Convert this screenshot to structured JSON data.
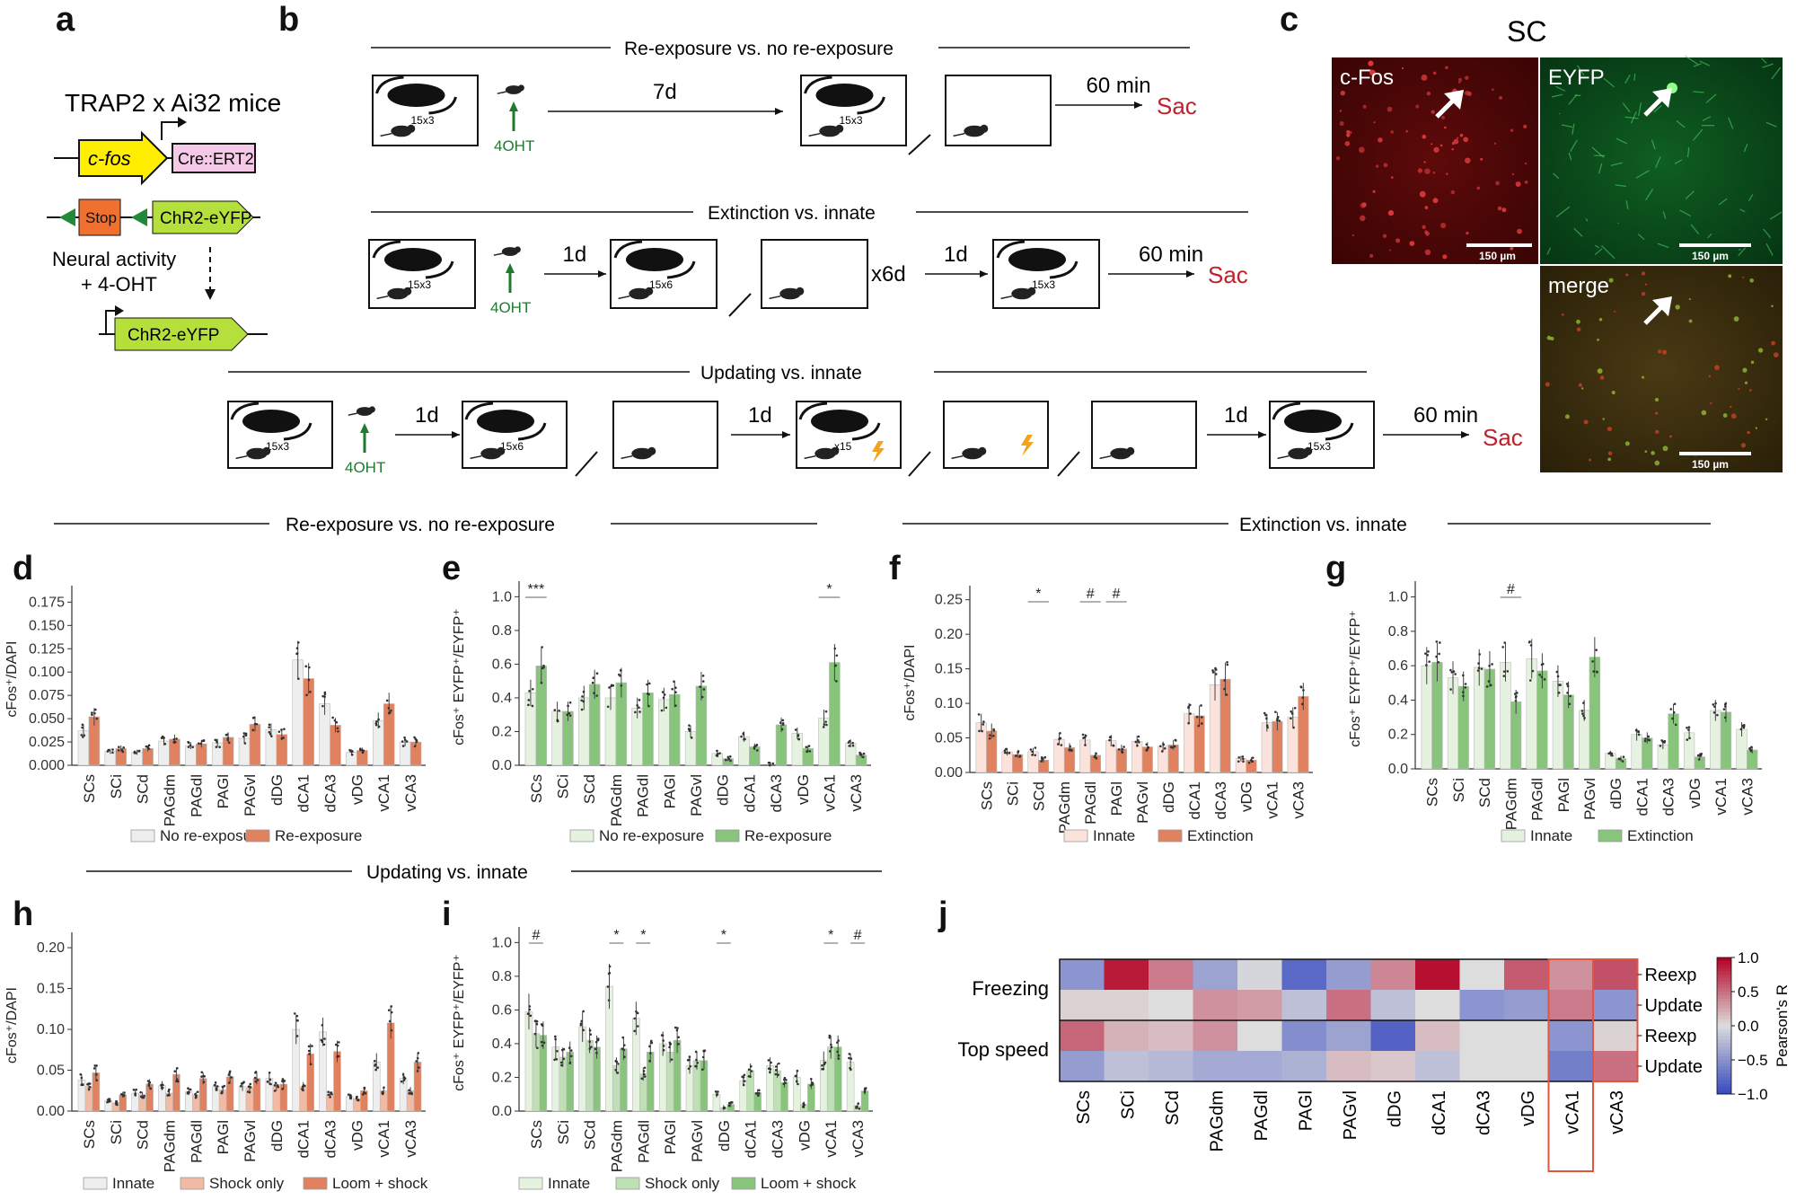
{
  "panel_letters": [
    "a",
    "b",
    "c",
    "d",
    "e",
    "f",
    "g",
    "h",
    "i",
    "j"
  ],
  "colors": {
    "innate": "#eeeeee",
    "innate_light_red": "#fbe3db",
    "innate_light_green": "#e6f2e0",
    "orange": "#e0825f",
    "light_orange": "#f2b9a3",
    "green": "#88c47c",
    "light_green": "#bfe0b5",
    "dark_red_text": "#c0202a",
    "dark_green_text": "#1f7a2e",
    "fluor_red": "#7a1010",
    "fluor_green": "#0c5a1e"
  },
  "panel_a": {
    "title": "TRAP2 x Ai32 mice",
    "cfos": "c-fos",
    "cre": "Cre::ERT2",
    "stop": "Stop",
    "chr2_1": "ChR2-eYFP",
    "activity_line1": "Neural activity",
    "activity_line2": "+ 4-OHT",
    "chr2_2": "ChR2-eYFP"
  },
  "panel_b": {
    "header1": "Re-exposure vs. no re-exposure",
    "header2": "Extinction vs. innate",
    "header3": "Updating vs. innate",
    "labels": {
      "r1_box1": "15x3",
      "r1_drug": "4OHT",
      "r1_days": "7d",
      "r1_box2": "15x3",
      "r1_time": "60 min",
      "r1_sac": "Sac",
      "r2_box1": "15x3",
      "r2_drug": "4OHT",
      "r2_d1": "1d",
      "r2_box2": "15x6",
      "r2_rep": "x6d",
      "r2_d2": "1d",
      "r2_box3": "15x3",
      "r2_time": "60 min",
      "r2_sac": "Sac",
      "r3_box1": "15x3",
      "r3_drug": "4OHT",
      "r3_d1": "1d",
      "r3_box2": "15x6",
      "r3_d2": "1d",
      "r3_box3": "x15",
      "r3_d3": "1d",
      "r3_box4": "15x3",
      "r3_time": "60 min",
      "r3_sac": "Sac"
    }
  },
  "panel_c": {
    "title": "SC",
    "cfos_label": "c-Fos",
    "eyfp_label": "EYFP",
    "merge_label": "merge",
    "scale1": "150 µm",
    "scale2": "150 µm",
    "scale3": "150 µm"
  },
  "section_headers": {
    "top_left": "Re-exposure vs. no re-exposure",
    "top_right": "Extinction vs. innate",
    "bottom_left": "Updating vs. innate"
  },
  "chart_data": [
    {
      "id": "d",
      "type": "bar",
      "ylabel": "cFos⁺/DAPI",
      "ylim": [
        0,
        0.185
      ],
      "yticks": [
        "0.000",
        "0.025",
        "0.050",
        "0.075",
        "0.100",
        "0.125",
        "0.150",
        "0.175"
      ],
      "ytick_values": [
        0,
        0.025,
        0.05,
        0.075,
        0.1,
        0.125,
        0.15,
        0.175
      ],
      "categories": [
        "SCs",
        "SCi",
        "SCd",
        "PAGdm",
        "PAGdl",
        "PAGl",
        "PAGvl",
        "dDG",
        "dCA1",
        "dCA3",
        "vDG",
        "vCA1",
        "vCA3"
      ],
      "series": [
        {
          "name": "No re-exposure",
          "color": "#eeeeee",
          "values": [
            0.037,
            0.015,
            0.014,
            0.026,
            0.021,
            0.024,
            0.029,
            0.038,
            0.113,
            0.066,
            0.014,
            0.048,
            0.025
          ]
        },
        {
          "name": "Re-exposure",
          "color": "#e0825f",
          "values": [
            0.052,
            0.018,
            0.018,
            0.028,
            0.023,
            0.03,
            0.044,
            0.033,
            0.093,
            0.043,
            0.016,
            0.066,
            0.025
          ]
        }
      ],
      "significance": []
    },
    {
      "id": "e",
      "type": "bar",
      "ylabel": "cFos⁺ EYFP⁺/EYFP⁺",
      "ylim": [
        0,
        1.05
      ],
      "yticks": [
        "0.0",
        "0.2",
        "0.4",
        "0.6",
        "0.8",
        "1.0"
      ],
      "ytick_values": [
        0,
        0.2,
        0.4,
        0.6,
        0.8,
        1.0
      ],
      "categories": [
        "SCs",
        "SCi",
        "SCd",
        "PAGdm",
        "PAGdl",
        "PAGl",
        "PAGvl",
        "dDG",
        "dCA1",
        "dCA3",
        "vDG",
        "vCA1",
        "vCA3"
      ],
      "series": [
        {
          "name": "No re-exposure",
          "color": "#e6f2e0",
          "values": [
            0.43,
            0.32,
            0.4,
            0.4,
            0.34,
            0.39,
            0.2,
            0.07,
            0.17,
            0.0,
            0.19,
            0.28,
            0.13
          ]
        },
        {
          "name": "Re-exposure",
          "color": "#88c47c",
          "values": [
            0.59,
            0.32,
            0.48,
            0.49,
            0.43,
            0.42,
            0.47,
            0.04,
            0.11,
            0.24,
            0.1,
            0.61,
            0.06
          ]
        }
      ],
      "significance": [
        {
          "index": 0,
          "label": "***"
        },
        {
          "index": 11,
          "label": "*"
        }
      ]
    },
    {
      "id": "f",
      "type": "bar",
      "ylabel": "cFos⁺/DAPI",
      "ylim": [
        0,
        0.26
      ],
      "yticks": [
        "0.00",
        "0.05",
        "0.10",
        "0.15",
        "0.20",
        "0.25"
      ],
      "ytick_values": [
        0,
        0.05,
        0.1,
        0.15,
        0.2,
        0.25
      ],
      "categories": [
        "SCs",
        "SCi",
        "SCd",
        "PAGdm",
        "PAGdl",
        "PAGl",
        "PAGvl",
        "dDG",
        "dCA1",
        "dCA3",
        "vDG",
        "vCA1",
        "vCA3"
      ],
      "series": [
        {
          "name": "Innate",
          "color": "#fbe3db",
          "values": [
            0.072,
            0.03,
            0.03,
            0.048,
            0.047,
            0.046,
            0.045,
            0.038,
            0.085,
            0.127,
            0.02,
            0.072,
            0.08
          ]
        },
        {
          "name": "Extinction",
          "color": "#e0825f",
          "values": [
            0.06,
            0.026,
            0.018,
            0.036,
            0.025,
            0.034,
            0.037,
            0.04,
            0.082,
            0.135,
            0.018,
            0.074,
            0.11
          ]
        }
      ],
      "significance": [
        {
          "index": 2,
          "label": "*"
        },
        {
          "index": 4,
          "label": "#"
        },
        {
          "index": 5,
          "label": "#"
        }
      ]
    },
    {
      "id": "g",
      "type": "bar",
      "ylabel": "cFos⁺ EYFP⁺/EYFP⁺",
      "ylim": [
        0,
        1.05
      ],
      "yticks": [
        "0.0",
        "0.2",
        "0.4",
        "0.6",
        "0.8",
        "1.0"
      ],
      "ytick_values": [
        0,
        0.2,
        0.4,
        0.6,
        0.8,
        1.0
      ],
      "categories": [
        "SCs",
        "SCi",
        "SCd",
        "PAGdm",
        "PAGdl",
        "PAGl",
        "PAGvl",
        "dDG",
        "dCA1",
        "dCA3",
        "vDG",
        "vCA1",
        "vCA3"
      ],
      "series": [
        {
          "name": "Innate",
          "color": "#e6f2e0",
          "values": [
            0.6,
            0.53,
            0.59,
            0.62,
            0.64,
            0.51,
            0.34,
            0.09,
            0.2,
            0.14,
            0.21,
            0.34,
            0.23
          ]
        },
        {
          "name": "Extinction",
          "color": "#88c47c",
          "values": [
            0.62,
            0.48,
            0.58,
            0.39,
            0.57,
            0.43,
            0.65,
            0.06,
            0.18,
            0.32,
            0.07,
            0.33,
            0.11
          ]
        }
      ],
      "significance": [
        {
          "index": 3,
          "label": "#"
        }
      ]
    },
    {
      "id": "h",
      "type": "bar",
      "ylabel": "cFos⁺/DAPI",
      "ylim": [
        0,
        0.21
      ],
      "yticks": [
        "0.00",
        "0.05",
        "0.10",
        "0.15",
        "0.20"
      ],
      "ytick_values": [
        0,
        0.05,
        0.1,
        0.15,
        0.2
      ],
      "categories": [
        "SCs",
        "SCi",
        "SCd",
        "PAGdm",
        "PAGdl",
        "PAGl",
        "PAGvl",
        "dDG",
        "dCA1",
        "dCA3",
        "vDG",
        "vCA1",
        "vCA3"
      ],
      "series": [
        {
          "name": "Innate",
          "color": "#eeeeee",
          "values": [
            0.038,
            0.013,
            0.022,
            0.031,
            0.024,
            0.03,
            0.03,
            0.04,
            0.1,
            0.097,
            0.018,
            0.06,
            0.04
          ]
        },
        {
          "name": "Shock only",
          "color": "#f2b9a3",
          "values": [
            0.03,
            0.01,
            0.02,
            0.022,
            0.02,
            0.026,
            0.028,
            0.03,
            0.03,
            0.02,
            0.015,
            0.025,
            0.025
          ]
        },
        {
          "name": "Loom + shock",
          "color": "#e0825f",
          "values": [
            0.047,
            0.02,
            0.033,
            0.045,
            0.04,
            0.042,
            0.04,
            0.033,
            0.07,
            0.073,
            0.025,
            0.108,
            0.06
          ]
        }
      ],
      "significance": []
    },
    {
      "id": "i",
      "type": "bar",
      "ylabel": "cFos⁺ EYFP⁺/EYFP⁺",
      "ylim": [
        0,
        1.05
      ],
      "yticks": [
        "0.0",
        "0.2",
        "0.4",
        "0.6",
        "0.8",
        "1.0"
      ],
      "ytick_values": [
        0,
        0.2,
        0.4,
        0.6,
        0.8,
        1.0
      ],
      "categories": [
        "SCs",
        "SCi",
        "SCd",
        "PAGdm",
        "PAGdl",
        "PAGl",
        "PAGvl",
        "dDG",
        "dCA1",
        "dCA3",
        "vDG",
        "vCA1",
        "vCA3"
      ],
      "series": [
        {
          "name": "Innate",
          "color": "#e6f2e0",
          "values": [
            0.59,
            0.38,
            0.5,
            0.74,
            0.55,
            0.4,
            0.27,
            0.1,
            0.18,
            0.27,
            0.2,
            0.3,
            0.29
          ]
        },
        {
          "name": "Shock only",
          "color": "#bfe0b5",
          "values": [
            0.46,
            0.32,
            0.42,
            0.27,
            0.22,
            0.35,
            0.3,
            0.02,
            0.24,
            0.24,
            0.04,
            0.38,
            0.03
          ]
        },
        {
          "name": "Loom + shock",
          "color": "#88c47c",
          "values": [
            0.45,
            0.35,
            0.38,
            0.37,
            0.35,
            0.42,
            0.3,
            0.04,
            0.11,
            0.17,
            0.16,
            0.38,
            0.12
          ]
        }
      ],
      "significance": [
        {
          "index": 0,
          "label": "#"
        },
        {
          "index": 3,
          "label": "*"
        },
        {
          "index": 4,
          "label": "*"
        },
        {
          "index": 7,
          "label": "*"
        },
        {
          "index": 11,
          "label": "*"
        },
        {
          "index": 12,
          "label": "#"
        }
      ]
    },
    {
      "id": "j",
      "type": "heatmap",
      "columns": [
        "SCs",
        "SCi",
        "SCd",
        "PAGdm",
        "PAGdl",
        "PAGl",
        "PAGvl",
        "dDG",
        "dCA1",
        "dCA3",
        "vDG",
        "vCA1",
        "vCA3"
      ],
      "row_groups": [
        "Freezing",
        "Top speed"
      ],
      "rows": [
        "Reexp",
        "Update",
        "Reexp",
        "Update"
      ],
      "colorbar_label": "Pearson's R",
      "colorbar_ticks": [
        "1.0",
        "0.5",
        "0.0",
        "−0.5",
        "−1.0"
      ],
      "colorbar_values": [
        1.0,
        0.5,
        0.0,
        -0.5,
        -1.0
      ],
      "highlight_column": "vCA1",
      "values": [
        [
          -0.5,
          0.9,
          0.45,
          -0.4,
          -0.05,
          -0.8,
          -0.45,
          0.4,
          0.95,
          0.0,
          0.6,
          0.35,
          0.65
        ],
        [
          0.05,
          0.05,
          0.0,
          0.35,
          0.3,
          -0.2,
          0.5,
          -0.2,
          0.0,
          -0.5,
          -0.45,
          0.45,
          -0.5
        ],
        [
          0.55,
          0.2,
          0.15,
          0.35,
          0.0,
          -0.55,
          -0.4,
          -0.85,
          0.15,
          0.0,
          0.0,
          -0.5,
          0.05
        ],
        [
          -0.45,
          -0.2,
          -0.25,
          -0.35,
          -0.35,
          -0.3,
          0.15,
          0.1,
          -0.2,
          0.0,
          0.0,
          -0.65,
          0.5
        ]
      ]
    }
  ]
}
